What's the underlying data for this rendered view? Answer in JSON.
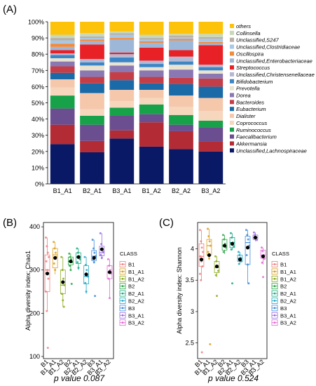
{
  "panels": {
    "a_label": "(A)",
    "b_label": "(B)",
    "c_label": "(C)"
  },
  "chart_data": [
    {
      "type": "bar",
      "stacked": true,
      "categories": [
        "B1_A1",
        "B2_A1",
        "B3_A1",
        "B1_A2",
        "B2_A2",
        "B3_A2"
      ],
      "ylim": [
        0,
        100
      ],
      "yticks": [
        "0%",
        "10%",
        "20%",
        "30%",
        "40%",
        "50%",
        "60%",
        "70%",
        "80%",
        "90%",
        "100%"
      ],
      "legend_position": "right",
      "series": [
        {
          "name": "Unclassified,Lachnospiraceae",
          "color": "#0a1966",
          "values": [
            24.5,
            19.5,
            28,
            23,
            21.5,
            20
          ]
        },
        {
          "name": "Akkermansia",
          "color": "#b22b35",
          "values": [
            12,
            7,
            5,
            15,
            11,
            6
          ]
        },
        {
          "name": "Faecalibacterium",
          "color": "#6b4e8f",
          "values": [
            10,
            10,
            9,
            5,
            4,
            9
          ]
        },
        {
          "name": "Ruminococcus",
          "color": "#17a249",
          "values": [
            8,
            5.5,
            5,
            6,
            6,
            4
          ]
        },
        {
          "name": "Coprococcus",
          "color": "#f6d7bd",
          "values": [
            5,
            4,
            4,
            4,
            5,
            6
          ]
        },
        {
          "name": "Dialister",
          "color": "#f5c8ac",
          "values": [
            5,
            10,
            7,
            5,
            7,
            8
          ]
        },
        {
          "name": "Eubacterium",
          "color": "#1a6aa8",
          "values": [
            4,
            6,
            6,
            4,
            7,
            7
          ]
        },
        {
          "name": "Bacteroides",
          "color": "#c43e48",
          "values": [
            4,
            4,
            5,
            4,
            4,
            5
          ]
        },
        {
          "name": "Dorea",
          "color": "#8a78b3",
          "values": [
            3,
            4,
            4,
            4,
            5,
            3
          ]
        },
        {
          "name": "Prevotella",
          "color": "#e9e3cf",
          "values": [
            2,
            3,
            2,
            2,
            3,
            2
          ]
        },
        {
          "name": "Bifidobacterium",
          "color": "#3c86c6",
          "values": [
            2,
            2,
            3,
            2,
            2,
            2
          ]
        },
        {
          "name": "Unclassified,Christensenellaceae",
          "color": "#b4b8d4",
          "values": [
            1,
            2,
            2,
            2,
            3,
            1.5
          ]
        },
        {
          "name": "Streptococcus",
          "color": "#e82127",
          "values": [
            2,
            9,
            1,
            8,
            4,
            12
          ]
        },
        {
          "name": "Unclassified,Enterobacteriaceae",
          "color": "#9db7d8",
          "values": [
            2,
            2,
            8,
            3,
            6,
            1
          ]
        },
        {
          "name": "Oscillospira",
          "color": "#f28a3c",
          "values": [
            2,
            1,
            1,
            1,
            1,
            1
          ]
        },
        {
          "name": "Unclassified,Clostridiaceae",
          "color": "#a8c8e8",
          "values": [
            2,
            1,
            2,
            1,
            1,
            2
          ]
        },
        {
          "name": "Unclassified,S247",
          "color": "#b9b0a6",
          "values": [
            1.5,
            1,
            1,
            1,
            1,
            1
          ]
        },
        {
          "name": "Collinsella",
          "color": "#c9d8b8",
          "values": [
            2,
            2,
            1,
            2,
            1,
            2
          ]
        },
        {
          "name": "others",
          "color": "#fdc30a",
          "values": [
            8,
            7,
            6,
            8,
            7.5,
            7.5
          ]
        }
      ]
    },
    {
      "type": "box",
      "ylabel": "Alpha diversity index: Chao1",
      "ylim": [
        95,
        410
      ],
      "yticks": [
        100,
        200,
        300,
        400
      ],
      "categories": [
        "B1",
        "B1_A1",
        "B1_A2",
        "B2",
        "B2_A1",
        "B2_A2",
        "B3",
        "B3_A1",
        "B3_A2"
      ],
      "legend_title": "CLASS",
      "p_text": "p value 0.087",
      "groups": [
        {
          "name": "B1",
          "color": "#f08080",
          "q1": 250,
          "median": 300,
          "q3": 335,
          "lo": 205,
          "hi": 375,
          "mean": 292,
          "points": [
            375,
            355,
            340,
            330,
            320,
            300,
            280,
            250,
            205,
            120
          ]
        },
        {
          "name": "B1_A1",
          "color": "#d9a01f",
          "q1": 305,
          "median": 335,
          "q3": 350,
          "lo": 290,
          "hi": 365,
          "mean": 328,
          "points": [
            365,
            350,
            340,
            330,
            315,
            300
          ]
        },
        {
          "name": "B1_A2",
          "color": "#8cab1e",
          "q1": 245,
          "median": 265,
          "q3": 300,
          "lo": 215,
          "hi": 330,
          "mean": 272,
          "points": [
            330,
            300,
            280,
            265,
            245,
            230,
            215
          ]
        },
        {
          "name": "B2",
          "color": "#2aa845",
          "q1": 312,
          "median": 320,
          "q3": 330,
          "lo": 298,
          "hi": 338,
          "mean": 320,
          "points": [
            338,
            330,
            325,
            318,
            310,
            300,
            268
          ]
        },
        {
          "name": "B2_A1",
          "color": "#1aab86",
          "q1": 315,
          "median": 330,
          "q3": 340,
          "lo": 300,
          "hi": 350,
          "mean": 330,
          "points": [
            350,
            340,
            332,
            325,
            318,
            305
          ]
        },
        {
          "name": "B2_A2",
          "color": "#22aac6",
          "q1": 268,
          "median": 285,
          "q3": 310,
          "lo": 245,
          "hi": 330,
          "mean": 290,
          "points": [
            330,
            312,
            300,
            285,
            270,
            250
          ]
        },
        {
          "name": "B3",
          "color": "#3f8cdc",
          "q1": 322,
          "median": 332,
          "q3": 345,
          "lo": 315,
          "hi": 370,
          "mean": 328,
          "points": [
            370,
            350,
            340,
            332,
            325,
            318,
            240
          ]
        },
        {
          "name": "B3_A1",
          "color": "#9a6be0",
          "q1": 333,
          "median": 340,
          "q3": 355,
          "lo": 325,
          "hi": 385,
          "mean": 348,
          "points": [
            385,
            360,
            350,
            342,
            335,
            328
          ]
        },
        {
          "name": "B3_A2",
          "color": "#e36bd6",
          "q1": 280,
          "median": 295,
          "q3": 310,
          "lo": 235,
          "hi": 325,
          "mean": 295,
          "points": [
            325,
            310,
            300,
            292,
            280,
            235
          ]
        }
      ]
    },
    {
      "type": "box",
      "ylabel": "Alpha diversity index: Shannon",
      "ylim": [
        2.25,
        4.42
      ],
      "yticks": [
        2.5,
        3.0,
        3.5,
        4.0
      ],
      "categories": [
        "B1",
        "B1_A1",
        "B1_A2",
        "B2",
        "B2_A1",
        "B2_A2",
        "B3",
        "B3_A1",
        "B3_A2"
      ],
      "legend_title": "CLASS",
      "p_text": "p value 0.524",
      "groups": [
        {
          "name": "B1",
          "color": "#f08080",
          "q1": 3.72,
          "median": 3.88,
          "q3": 4.08,
          "lo": 3.5,
          "hi": 4.3,
          "mean": 3.83,
          "points": [
            4.3,
            4.12,
            4.02,
            3.95,
            3.88,
            3.8,
            3.72,
            3.6,
            3.5,
            2.35
          ]
        },
        {
          "name": "B1_A1",
          "color": "#d9a01f",
          "q1": 3.9,
          "median": 4.05,
          "q3": 4.15,
          "lo": 3.82,
          "hi": 4.32,
          "mean": 3.9,
          "points": [
            4.32,
            4.2,
            4.12,
            4.05,
            3.95,
            3.85,
            2.48
          ]
        },
        {
          "name": "B1_A2",
          "color": "#8cab1e",
          "q1": 3.62,
          "median": 3.7,
          "q3": 3.8,
          "lo": 3.55,
          "hi": 3.88,
          "mean": 3.72,
          "points": [
            3.88,
            3.8,
            3.72,
            3.65,
            3.58,
            3.25
          ]
        },
        {
          "name": "B2",
          "color": "#2aa845",
          "q1": 3.98,
          "median": 4.05,
          "q3": 4.15,
          "lo": 3.92,
          "hi": 4.22,
          "mean": 4.05,
          "points": [
            4.22,
            4.15,
            4.08,
            4.02,
            3.95
          ]
        },
        {
          "name": "B2_A1",
          "color": "#1aab86",
          "q1": 4.02,
          "median": 4.1,
          "q3": 4.18,
          "lo": 3.98,
          "hi": 4.25,
          "mean": 4.08,
          "points": [
            4.25,
            4.18,
            4.1,
            4.04,
            3.99,
            3.45
          ]
        },
        {
          "name": "B2_A2",
          "color": "#22aac6",
          "q1": 3.8,
          "median": 3.85,
          "q3": 3.9,
          "lo": 3.75,
          "hi": 3.95,
          "mean": 3.83,
          "points": [
            3.95,
            3.9,
            3.86,
            3.8,
            3.76
          ]
        },
        {
          "name": "B3",
          "color": "#3f8cdc",
          "q1": 3.75,
          "median": 4.1,
          "q3": 4.2,
          "lo": 3.45,
          "hi": 4.3,
          "mean": 4.02,
          "points": [
            4.3,
            4.22,
            4.15,
            4.05,
            3.9,
            3.75,
            3.45
          ]
        },
        {
          "name": "B3_A1",
          "color": "#9a6be0",
          "q1": 4.15,
          "median": 4.18,
          "q3": 4.22,
          "lo": 4.12,
          "hi": 4.26,
          "mean": 4.18,
          "points": [
            4.26,
            4.22,
            4.18,
            4.14
          ]
        },
        {
          "name": "B3_A2",
          "color": "#e36bd6",
          "q1": 3.85,
          "median": 3.9,
          "q3": 3.98,
          "lo": 3.75,
          "hi": 4.02,
          "mean": 3.88,
          "points": [
            4.02,
            3.96,
            3.9,
            3.84,
            3.78,
            3.55
          ]
        }
      ]
    }
  ]
}
